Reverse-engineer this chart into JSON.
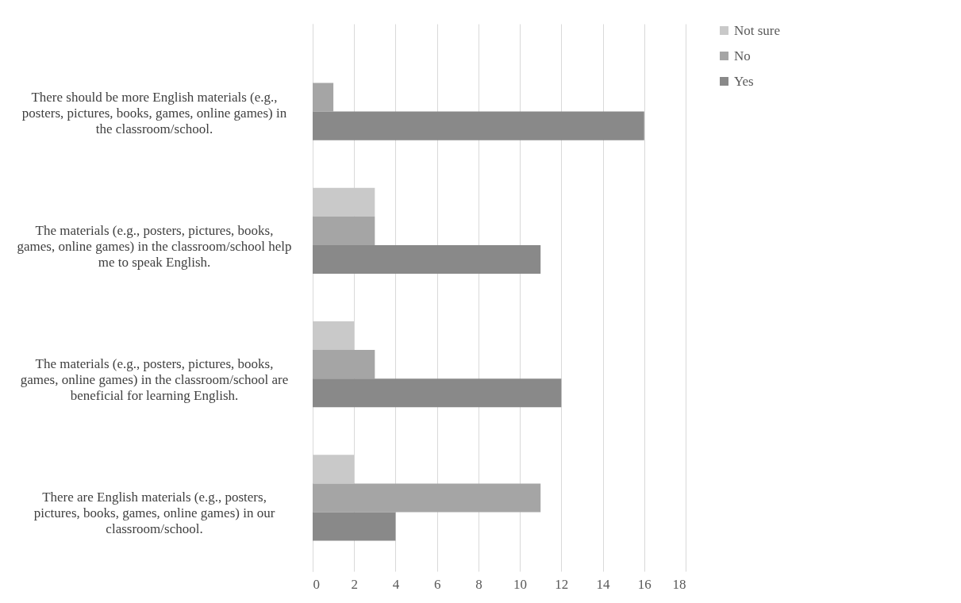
{
  "chart_data": {
    "type": "bar",
    "orientation": "horizontal",
    "categories": [
      "There should be more English materials (e.g., posters, pictures, books, games, online games) in the classroom/school.",
      "The materials (e.g., posters, pictures, books, games, online games) in the classroom/school help me to speak English.",
      "The materials (e.g., posters, pictures, books, games, online games) in the classroom/school are beneficial for learning English.",
      "There are English materials (e.g., posters, pictures, books, games, online games) in our classroom/school."
    ],
    "series": [
      {
        "name": "Not sure",
        "color": "#c9c9c9",
        "values": [
          0,
          3,
          2,
          2
        ]
      },
      {
        "name": "No",
        "color": "#a5a5a5",
        "values": [
          1,
          3,
          3,
          11
        ]
      },
      {
        "name": "Yes",
        "color": "#898989",
        "values": [
          16,
          11,
          12,
          4
        ]
      }
    ],
    "xlim": [
      0,
      18
    ],
    "xticks": [
      0,
      2,
      4,
      6,
      8,
      10,
      12,
      14,
      16,
      18
    ],
    "grid": "x",
    "legend": "right"
  }
}
